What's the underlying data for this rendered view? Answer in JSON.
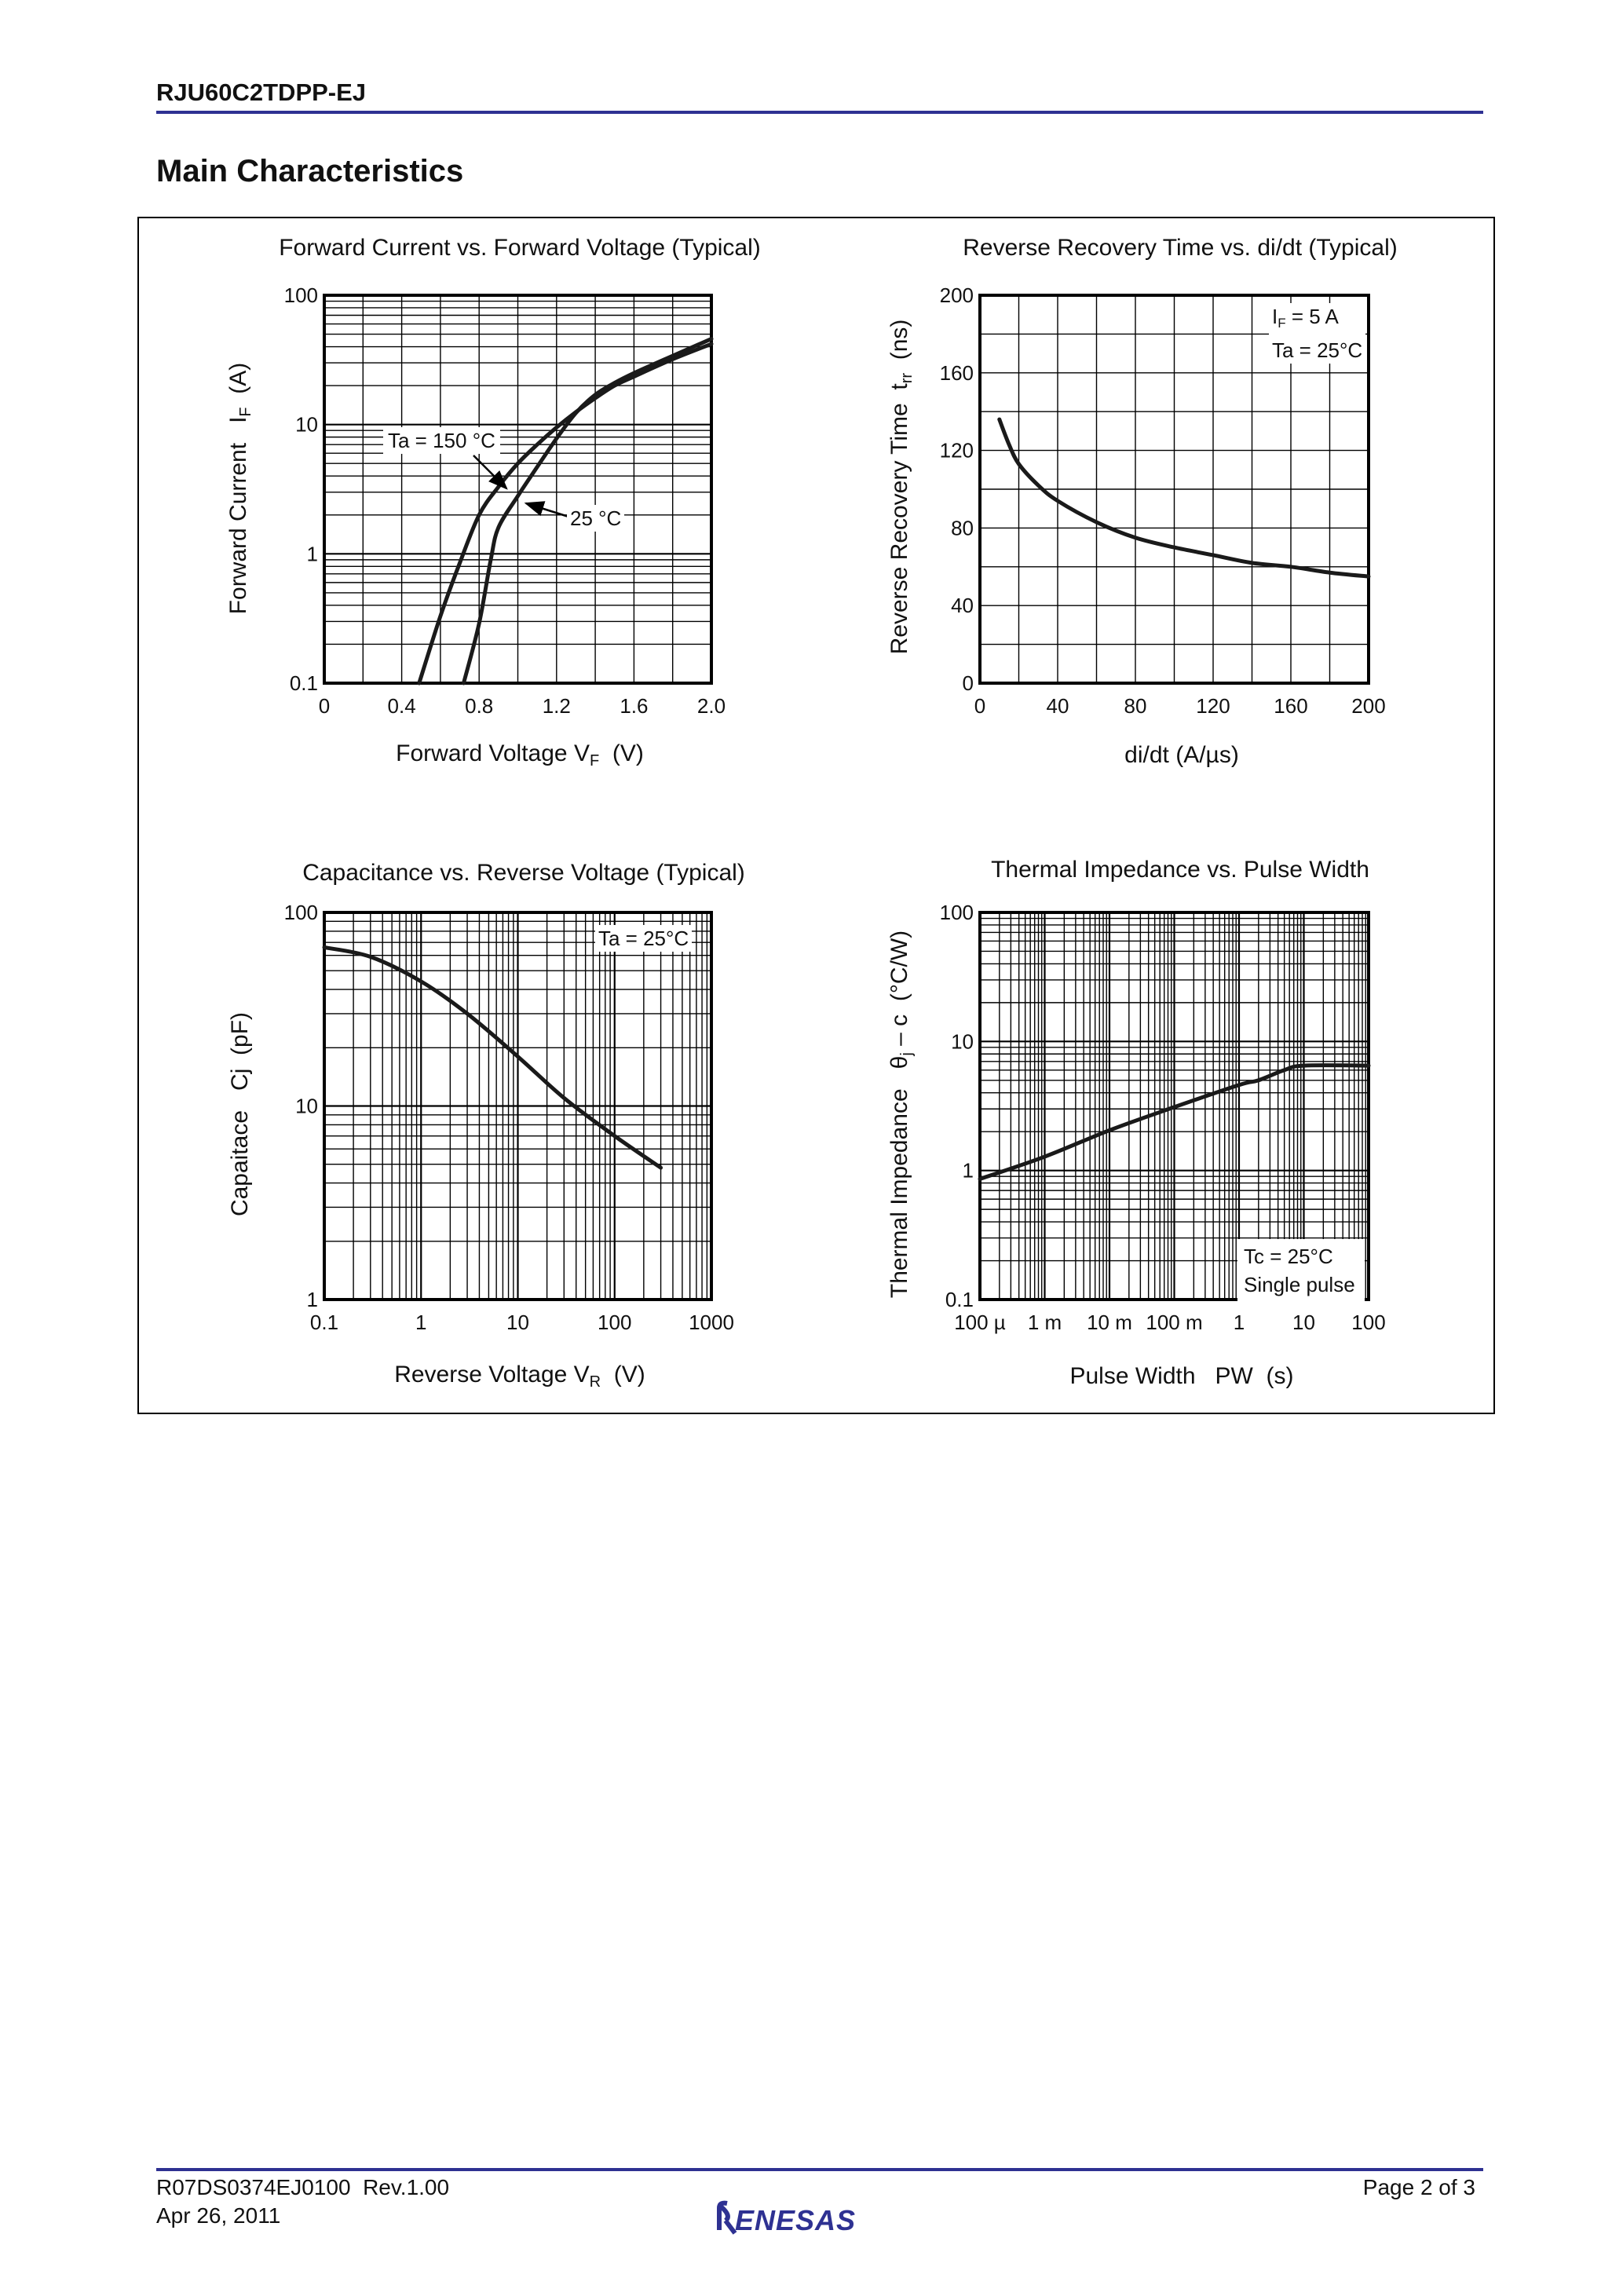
{
  "header": {
    "doc_id": "RJU60C2TDPP-EJ",
    "section_title": "Main Characteristics",
    "rule_color": "#2e3192"
  },
  "footer": {
    "doc_number": "R07DS0374EJ0100  Rev.1.00",
    "date": "Apr 26, 2011",
    "page": "Page 2 of 3",
    "logo_text": "RENESAS",
    "logo_color": "#2e3192"
  },
  "chart_data": [
    {
      "type": "line",
      "title": "Forward Current vs. Forward Voltage (Typical)",
      "xlabel": {
        "text": "Forward Voltage   V",
        "sub": "F",
        "unit": "  (V)"
      },
      "ylabel": {
        "text": "Forward Current   I",
        "sub": "F",
        "unit": "  (A)"
      },
      "xscale": "linear",
      "yscale": "log",
      "xlim": [
        0,
        2.0
      ],
      "ylim": [
        0.1,
        100
      ],
      "x_grid_step": 0.2,
      "grid": true,
      "xticks": [
        {
          "v": 0,
          "label": "0"
        },
        {
          "v": 0.4,
          "label": "0.4"
        },
        {
          "v": 0.8,
          "label": "0.8"
        },
        {
          "v": 1.2,
          "label": "1.2"
        },
        {
          "v": 1.6,
          "label": "1.6"
        },
        {
          "v": 2.0,
          "label": "2.0"
        }
      ],
      "yticks": [
        {
          "v": 0.1,
          "label": "0.1"
        },
        {
          "v": 1,
          "label": "1"
        },
        {
          "v": 10,
          "label": "10"
        },
        {
          "v": 100,
          "label": "100"
        }
      ],
      "series": [
        {
          "name": "Ta = 150 °C",
          "points": [
            [
              0.49,
              0.1
            ],
            [
              0.6,
              0.33
            ],
            [
              0.7,
              0.85
            ],
            [
              0.8,
              2.0
            ],
            [
              0.9,
              3.3
            ],
            [
              1.0,
              5.0
            ],
            [
              1.1,
              7.0
            ],
            [
              1.2,
              9.5
            ],
            [
              1.3,
              12.5
            ],
            [
              1.4,
              16
            ],
            [
              1.5,
              20
            ],
            [
              1.6,
              23.5
            ],
            [
              1.8,
              32
            ],
            [
              2.0,
              42
            ]
          ]
        },
        {
          "name": "25 °C",
          "points": [
            [
              0.72,
              0.1
            ],
            [
              0.8,
              0.29
            ],
            [
              0.86,
              0.9
            ],
            [
              0.9,
              1.6
            ],
            [
              1.0,
              2.8
            ],
            [
              1.1,
              4.7
            ],
            [
              1.2,
              7.8
            ],
            [
              1.3,
              12.3
            ],
            [
              1.4,
              17
            ],
            [
              1.5,
              21
            ],
            [
              1.6,
              25
            ],
            [
              1.8,
              34
            ],
            [
              2.0,
              46
            ]
          ]
        }
      ],
      "annotations": [
        "Ta = 150 °C",
        "25 °C"
      ]
    },
    {
      "type": "line",
      "title": "Reverse Recovery Time vs. di/dt (Typical)",
      "xlabel": {
        "text": "di/dt  (A/µs)",
        "sub": "",
        "unit": ""
      },
      "ylabel": {
        "text": "Reverse Recovery Time  t",
        "sub": "rr",
        "unit": "  (ns)"
      },
      "xscale": "linear",
      "yscale": "linear",
      "xlim": [
        0,
        200
      ],
      "ylim": [
        0,
        200
      ],
      "x_grid_step": 20,
      "y_grid_step": 20,
      "grid": true,
      "xticks": [
        {
          "v": 0,
          "label": "0"
        },
        {
          "v": 40,
          "label": "40"
        },
        {
          "v": 80,
          "label": "80"
        },
        {
          "v": 120,
          "label": "120"
        },
        {
          "v": 160,
          "label": "160"
        },
        {
          "v": 200,
          "label": "200"
        }
      ],
      "yticks": [
        {
          "v": 0,
          "label": "0"
        },
        {
          "v": 40,
          "label": "40"
        },
        {
          "v": 80,
          "label": "80"
        },
        {
          "v": 120,
          "label": "120"
        },
        {
          "v": 160,
          "label": "160"
        },
        {
          "v": 200,
          "label": "200"
        }
      ],
      "series": [
        {
          "points": [
            [
              10,
              136
            ],
            [
              15,
              123
            ],
            [
              20,
              113
            ],
            [
              30,
              102
            ],
            [
              40,
              94
            ],
            [
              60,
              83
            ],
            [
              80,
              75
            ],
            [
              100,
              70
            ],
            [
              120,
              66
            ],
            [
              140,
              62
            ],
            [
              160,
              60
            ],
            [
              180,
              57
            ],
            [
              200,
              55
            ]
          ]
        }
      ],
      "annotations": [
        {
          "text": "I",
          "sub": "F",
          "rest": " = 5 A"
        },
        "Ta = 25°C"
      ]
    },
    {
      "type": "line",
      "title": "Capacitance vs. Reverse Voltage (Typical)",
      "xlabel": {
        "text": "Reverse Voltage   V",
        "sub": "R",
        "unit": "  (V)"
      },
      "ylabel": {
        "text": "Capaitace   Cj  (pF)",
        "sub": "",
        "unit": ""
      },
      "xscale": "log",
      "yscale": "log",
      "xlim": [
        0.1,
        1000
      ],
      "ylim": [
        1,
        100
      ],
      "grid": true,
      "xticks": [
        {
          "v": 0.1,
          "label": "0.1"
        },
        {
          "v": 1,
          "label": "1"
        },
        {
          "v": 10,
          "label": "10"
        },
        {
          "v": 100,
          "label": "100"
        },
        {
          "v": 1000,
          "label": "1000"
        }
      ],
      "yticks": [
        {
          "v": 1,
          "label": "1"
        },
        {
          "v": 10,
          "label": "10"
        },
        {
          "v": 100,
          "label": "100"
        }
      ],
      "series": [
        {
          "points": [
            [
              0.1,
              66
            ],
            [
              0.3,
              59
            ],
            [
              1,
              44
            ],
            [
              3,
              30
            ],
            [
              10,
              18
            ],
            [
              30,
              11
            ],
            [
              100,
              7
            ],
            [
              300,
              4.8
            ]
          ]
        }
      ],
      "annotations": [
        "Ta = 25°C"
      ]
    },
    {
      "type": "line",
      "title": "Thermal Impedance vs. Pulse Width",
      "xlabel": {
        "text": "Pulse Width   PW  (s)",
        "sub": "",
        "unit": ""
      },
      "ylabel": {
        "text": "Thermal Impedance   θ",
        "sub": "j",
        "unit": " – c  (°C/W)"
      },
      "xscale": "log",
      "yscale": "log",
      "xlim": [
        0.0001,
        100
      ],
      "ylim": [
        0.1,
        100
      ],
      "grid": true,
      "xticks": [
        {
          "v": 0.0001,
          "label": "100 µ"
        },
        {
          "v": 0.001,
          "label": "1 m"
        },
        {
          "v": 0.01,
          "label": "10 m"
        },
        {
          "v": 0.1,
          "label": "100 m"
        },
        {
          "v": 1,
          "label": "1"
        },
        {
          "v": 10,
          "label": "10"
        },
        {
          "v": 100,
          "label": "100"
        }
      ],
      "yticks": [
        {
          "v": 0.1,
          "label": "0.1"
        },
        {
          "v": 1,
          "label": "1"
        },
        {
          "v": 10,
          "label": "10"
        },
        {
          "v": 100,
          "label": "100"
        }
      ],
      "series": [
        {
          "points": [
            [
              0.0001,
              0.86
            ],
            [
              0.001,
              1.28
            ],
            [
              0.01,
              2.05
            ],
            [
              0.1,
              3.1
            ],
            [
              1,
              4.6
            ],
            [
              2,
              5.0
            ],
            [
              5,
              6.0
            ],
            [
              10,
              6.5
            ],
            [
              100,
              6.5
            ]
          ]
        }
      ],
      "annotations": [
        "Tc = 25°C",
        "Single pulse"
      ]
    }
  ]
}
